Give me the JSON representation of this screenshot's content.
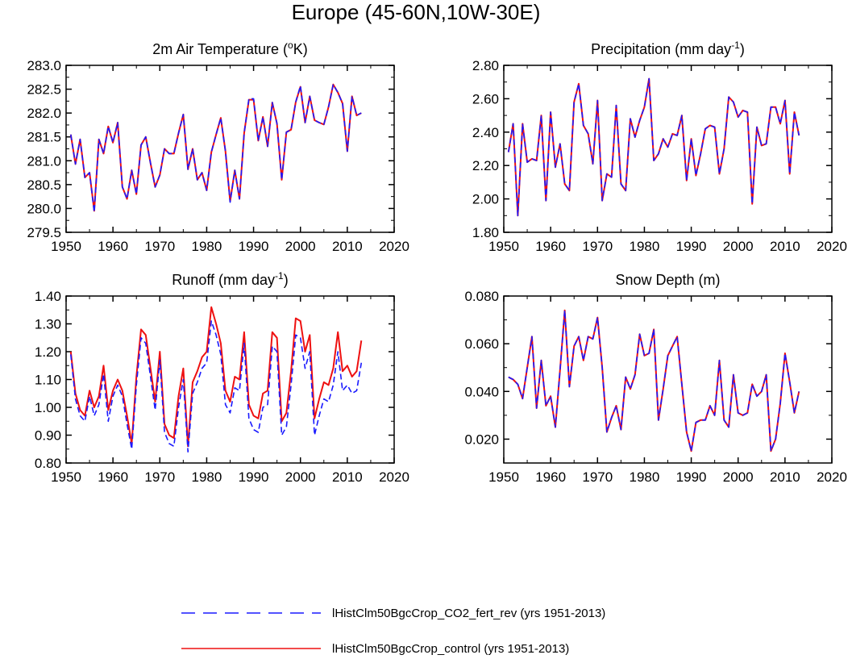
{
  "title": "Europe (45-60N,10W-30E)",
  "legend": [
    {
      "label": "lHistClm50BgcCrop_CO2_fert_rev (yrs 1951-2013)",
      "color": "#1a1aff",
      "dash": true
    },
    {
      "label": "lHistClm50BgcCrop_control (yrs 1951-2013)",
      "color": "#ee1111",
      "dash": false
    }
  ],
  "chart_data": [
    {
      "type": "line",
      "title_main": "2m Air Temperature (",
      "title_sup": "o",
      "title_end": "K)",
      "xlim": [
        1950,
        2020
      ],
      "xticks": [
        "1950",
        "1960",
        "1970",
        "1980",
        "1990",
        "2000",
        "2010",
        "2020"
      ],
      "ylim": [
        279.5,
        283.0
      ],
      "yticks": [
        "279.5",
        "280.0",
        "280.5",
        "281.0",
        "281.5",
        "282.0",
        "282.5",
        "283.0"
      ],
      "x_start": 1951,
      "series": [
        {
          "name": "lHistClm50BgcCrop_control (yrs 1951-2013)",
          "color": "#ee1111",
          "values": [
            281.55,
            280.93,
            281.45,
            280.65,
            280.75,
            279.95,
            281.45,
            281.15,
            281.72,
            281.38,
            281.8,
            280.45,
            280.2,
            280.8,
            280.3,
            281.33,
            281.5,
            280.95,
            280.45,
            280.7,
            281.25,
            281.15,
            281.15,
            281.58,
            281.97,
            280.82,
            281.25,
            280.6,
            280.75,
            280.38,
            281.18,
            281.55,
            281.9,
            281.2,
            280.15,
            280.8,
            280.2,
            281.58,
            282.28,
            282.28,
            281.42,
            281.92,
            281.3,
            282.22,
            281.78,
            280.6,
            281.6,
            281.65,
            282.23,
            282.55,
            281.8,
            282.35,
            281.85,
            281.8,
            281.76,
            282.13,
            282.6,
            282.43,
            282.2,
            281.2,
            282.35,
            281.95,
            282.0
          ]
        },
        {
          "name": "lHistClm50BgcCrop_CO2_fert_rev (yrs 1951-2013)",
          "color": "#1a1aff",
          "dash": true,
          "values": [
            281.55,
            280.93,
            281.45,
            280.65,
            280.75,
            279.92,
            281.45,
            281.15,
            281.72,
            281.38,
            281.8,
            280.45,
            280.2,
            280.8,
            280.3,
            281.33,
            281.5,
            280.95,
            280.45,
            280.7,
            281.25,
            281.15,
            281.15,
            281.58,
            281.97,
            280.82,
            281.25,
            280.6,
            280.75,
            280.38,
            281.18,
            281.55,
            281.9,
            281.2,
            280.13,
            280.8,
            280.2,
            281.58,
            282.3,
            282.3,
            281.42,
            281.92,
            281.3,
            282.22,
            281.78,
            280.6,
            281.6,
            281.65,
            282.23,
            282.57,
            281.8,
            282.35,
            281.85,
            281.8,
            281.76,
            282.13,
            282.6,
            282.43,
            282.2,
            281.2,
            282.35,
            281.95,
            282.0
          ]
        }
      ]
    },
    {
      "type": "line",
      "title_main": "Precipitation (mm day",
      "title_sup": "-1",
      "title_end": ")",
      "xlim": [
        1950,
        2020
      ],
      "xticks": [
        "1950",
        "1960",
        "1970",
        "1980",
        "1990",
        "2000",
        "2010",
        "2020"
      ],
      "ylim": [
        1.8,
        2.8
      ],
      "yticks": [
        "1.80",
        "2.00",
        "2.20",
        "2.40",
        "2.60",
        "2.80"
      ],
      "x_start": 1951,
      "series": [
        {
          "name": "lHistClm50BgcCrop_control (yrs 1951-2013)",
          "color": "#ee1111",
          "values": [
            2.28,
            2.45,
            1.9,
            2.45,
            2.22,
            2.24,
            2.23,
            2.5,
            1.99,
            2.52,
            2.19,
            2.33,
            2.09,
            2.05,
            2.58,
            2.69,
            2.44,
            2.39,
            2.21,
            2.59,
            1.99,
            2.15,
            2.13,
            2.56,
            2.09,
            2.05,
            2.48,
            2.37,
            2.47,
            2.55,
            2.72,
            2.23,
            2.27,
            2.36,
            2.31,
            2.39,
            2.38,
            2.5,
            2.11,
            2.36,
            2.14,
            2.27,
            2.42,
            2.44,
            2.43,
            2.15,
            2.3,
            2.61,
            2.58,
            2.49,
            2.53,
            2.52,
            1.97,
            2.43,
            2.32,
            2.33,
            2.55,
            2.55,
            2.45,
            2.59,
            2.15,
            2.52,
            2.38
          ]
        },
        {
          "name": "lHistClm50BgcCrop_CO2_fert_rev (yrs 1951-2013)",
          "color": "#1a1aff",
          "dash": true,
          "values": [
            2.28,
            2.45,
            1.9,
            2.45,
            2.22,
            2.24,
            2.23,
            2.5,
            1.99,
            2.52,
            2.19,
            2.33,
            2.09,
            2.05,
            2.58,
            2.69,
            2.44,
            2.39,
            2.21,
            2.59,
            1.99,
            2.15,
            2.13,
            2.56,
            2.09,
            2.05,
            2.48,
            2.37,
            2.47,
            2.55,
            2.72,
            2.23,
            2.27,
            2.36,
            2.31,
            2.39,
            2.38,
            2.5,
            2.11,
            2.36,
            2.14,
            2.27,
            2.42,
            2.44,
            2.43,
            2.15,
            2.3,
            2.61,
            2.58,
            2.49,
            2.53,
            2.52,
            1.97,
            2.43,
            2.32,
            2.33,
            2.55,
            2.55,
            2.45,
            2.59,
            2.15,
            2.52,
            2.38
          ]
        }
      ]
    },
    {
      "type": "line",
      "title_main": "Runoff (mm day",
      "title_sup": "-1",
      "title_end": ")",
      "xlim": [
        1950,
        2020
      ],
      "xticks": [
        "1950",
        "1960",
        "1970",
        "1980",
        "1990",
        "2000",
        "2010",
        "2020"
      ],
      "ylim": [
        0.8,
        1.4
      ],
      "yticks": [
        "0.80",
        "0.90",
        "1.00",
        "1.10",
        "1.20",
        "1.30",
        "1.40"
      ],
      "x_start": 1951,
      "series": [
        {
          "name": "lHistClm50BgcCrop_control (yrs 1951-2013)",
          "color": "#ee1111",
          "values": [
            1.2,
            1.05,
            0.99,
            0.97,
            1.06,
            1.0,
            1.04,
            1.15,
            0.99,
            1.06,
            1.1,
            1.06,
            0.97,
            0.87,
            1.11,
            1.28,
            1.26,
            1.14,
            1.02,
            1.2,
            0.94,
            0.9,
            0.89,
            1.04,
            1.14,
            0.86,
            1.09,
            1.13,
            1.18,
            1.2,
            1.36,
            1.3,
            1.23,
            1.06,
            1.02,
            1.11,
            1.1,
            1.27,
            1.01,
            0.97,
            0.96,
            1.05,
            1.06,
            1.27,
            1.25,
            0.95,
            0.98,
            1.13,
            1.32,
            1.31,
            1.2,
            1.26,
            0.96,
            1.03,
            1.09,
            1.08,
            1.14,
            1.27,
            1.13,
            1.15,
            1.11,
            1.13,
            1.24
          ]
        },
        {
          "name": "lHistClm50BgcCrop_CO2_fert_rev (yrs 1951-2013)",
          "color": "#1a1aff",
          "dash": true,
          "values": [
            1.19,
            1.03,
            0.97,
            0.95,
            1.04,
            0.97,
            1.01,
            1.12,
            0.95,
            1.04,
            1.08,
            1.04,
            0.94,
            0.85,
            1.08,
            1.25,
            1.23,
            1.11,
            0.99,
            1.17,
            0.91,
            0.87,
            0.86,
            1.0,
            1.1,
            0.84,
            1.05,
            1.09,
            1.14,
            1.16,
            1.31,
            1.26,
            1.19,
            1.01,
            0.98,
            1.07,
            1.06,
            1.23,
            0.96,
            0.92,
            0.91,
            1.0,
            1.01,
            1.22,
            1.2,
            0.9,
            0.93,
            1.08,
            1.26,
            1.25,
            1.14,
            1.2,
            0.9,
            0.97,
            1.03,
            1.02,
            1.08,
            1.2,
            1.06,
            1.08,
            1.05,
            1.06,
            1.16
          ]
        }
      ]
    },
    {
      "type": "line",
      "title_main": "Snow Depth (m)",
      "title_sup": "",
      "title_end": "",
      "xlim": [
        1950,
        2020
      ],
      "xticks": [
        "1950",
        "1960",
        "1970",
        "1980",
        "1990",
        "2000",
        "2010",
        "2020"
      ],
      "ylim": [
        0.01,
        0.08
      ],
      "yticks": [
        "0.020",
        "0.040",
        "0.060",
        "0.080"
      ],
      "ytick_values": [
        0.02,
        0.04,
        0.06,
        0.08
      ],
      "x_start": 1951,
      "series": [
        {
          "name": "lHistClm50BgcCrop_control (yrs 1951-2013)",
          "color": "#ee1111",
          "values": [
            0.046,
            0.045,
            0.043,
            0.037,
            0.05,
            0.063,
            0.033,
            0.053,
            0.034,
            0.038,
            0.025,
            0.049,
            0.074,
            0.042,
            0.059,
            0.063,
            0.053,
            0.063,
            0.062,
            0.071,
            0.05,
            0.023,
            0.029,
            0.034,
            0.024,
            0.046,
            0.041,
            0.047,
            0.064,
            0.055,
            0.056,
            0.066,
            0.028,
            0.041,
            0.055,
            0.059,
            0.063,
            0.043,
            0.023,
            0.015,
            0.027,
            0.028,
            0.028,
            0.034,
            0.03,
            0.053,
            0.028,
            0.025,
            0.047,
            0.031,
            0.03,
            0.031,
            0.043,
            0.038,
            0.04,
            0.047,
            0.015,
            0.02,
            0.035,
            0.056,
            0.044,
            0.031,
            0.04
          ]
        },
        {
          "name": "lHistClm50BgcCrop_CO2_fert_rev (yrs 1951-2013)",
          "color": "#1a1aff",
          "dash": true,
          "values": [
            0.046,
            0.045,
            0.043,
            0.037,
            0.05,
            0.063,
            0.033,
            0.053,
            0.034,
            0.038,
            0.025,
            0.049,
            0.074,
            0.042,
            0.059,
            0.063,
            0.053,
            0.063,
            0.062,
            0.071,
            0.05,
            0.023,
            0.029,
            0.034,
            0.024,
            0.046,
            0.041,
            0.047,
            0.064,
            0.055,
            0.056,
            0.066,
            0.028,
            0.041,
            0.055,
            0.059,
            0.063,
            0.043,
            0.023,
            0.015,
            0.027,
            0.028,
            0.028,
            0.034,
            0.03,
            0.053,
            0.028,
            0.025,
            0.047,
            0.031,
            0.03,
            0.031,
            0.043,
            0.038,
            0.04,
            0.047,
            0.015,
            0.02,
            0.035,
            0.056,
            0.044,
            0.031,
            0.04
          ]
        }
      ]
    }
  ]
}
